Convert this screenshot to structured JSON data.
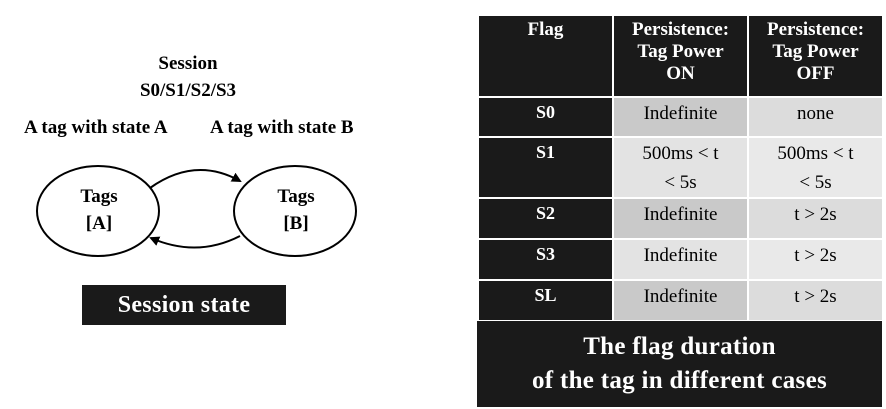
{
  "diagram": {
    "session_title": [
      "Session",
      "S0/S1/S2/S3"
    ],
    "state_a_label": "A tag with state A",
    "state_b_label": "A tag with state B",
    "node_a": [
      "Tags",
      "[A]"
    ],
    "node_b": [
      "Tags",
      "[B]"
    ],
    "caption": "Session state"
  },
  "table": {
    "headers": [
      [
        "Flag"
      ],
      [
        "Persistence:",
        "Tag Power",
        "ON"
      ],
      [
        "Persistence:",
        "Tag Power",
        "OFF"
      ]
    ],
    "rows": [
      {
        "flag": "S0",
        "on": [
          "Indefinite"
        ],
        "off": [
          "none"
        ]
      },
      {
        "flag": "S1",
        "on": [
          "500ms < t",
          "< 5s"
        ],
        "off": [
          "500ms < t",
          "< 5s"
        ]
      },
      {
        "flag": "S2",
        "on": [
          "Indefinite"
        ],
        "off": [
          "t > 2s"
        ]
      },
      {
        "flag": "S3",
        "on": [
          "Indefinite"
        ],
        "off": [
          "t > 2s"
        ]
      },
      {
        "flag": "SL",
        "on": [
          "Indefinite"
        ],
        "off": [
          "t > 2s"
        ]
      }
    ],
    "caption": [
      "The flag duration",
      "of the tag in different cases"
    ]
  }
}
